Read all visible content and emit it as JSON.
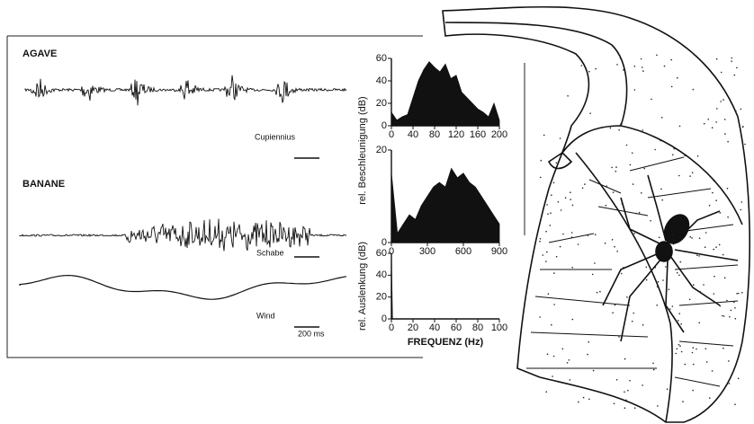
{
  "figure": {
    "panels": [
      {
        "label": "AGAVE",
        "source": "Cupiennius"
      },
      {
        "label": "BANANE",
        "source": "Schabe"
      },
      {
        "source": "Wind"
      }
    ],
    "scale_bar": "200 ms"
  },
  "chart_data": [
    {
      "type": "area",
      "ylabel": "rel. Beschleunigung (dB)",
      "x": [
        0,
        10,
        20,
        30,
        40,
        50,
        60,
        70,
        80,
        90,
        100,
        110,
        120,
        130,
        140,
        150,
        160,
        170,
        180,
        190,
        200
      ],
      "values": [
        12,
        5,
        8,
        10,
        25,
        40,
        50,
        57,
        52,
        48,
        55,
        42,
        45,
        30,
        25,
        20,
        15,
        12,
        8,
        20,
        5
      ],
      "color": "#111111",
      "xlim": [
        0,
        200
      ],
      "ylim": [
        0,
        60
      ],
      "xticks": [
        0,
        40,
        80,
        120,
        160,
        200
      ],
      "yticks": [
        0,
        20,
        40,
        60
      ]
    },
    {
      "type": "area",
      "x": [
        0,
        50,
        100,
        150,
        200,
        250,
        300,
        350,
        400,
        450,
        500,
        550,
        600,
        650,
        700,
        750,
        800,
        850,
        900
      ],
      "values": [
        15,
        2,
        4,
        6,
        5,
        8,
        10,
        12,
        13,
        12,
        16,
        14,
        15,
        13,
        12,
        10,
        8,
        6,
        4
      ],
      "color": "#111111",
      "xlim": [
        0,
        900
      ],
      "ylim": [
        0,
        20
      ],
      "xticks": [
        0,
        300,
        600,
        900
      ],
      "yticks": [
        0,
        20
      ]
    },
    {
      "type": "area",
      "ylabel": "rel. Auslenkung (dB)",
      "xlabel": "FREQUENZ (Hz)",
      "x": [
        0,
        1,
        2,
        100
      ],
      "values": [
        58,
        0,
        0,
        0
      ],
      "color": "#111111",
      "xlim": [
        0,
        100
      ],
      "ylim": [
        0,
        60
      ],
      "xticks": [
        0,
        20,
        40,
        60,
        80,
        100
      ],
      "yticks": [
        0,
        20,
        40,
        60
      ]
    }
  ]
}
